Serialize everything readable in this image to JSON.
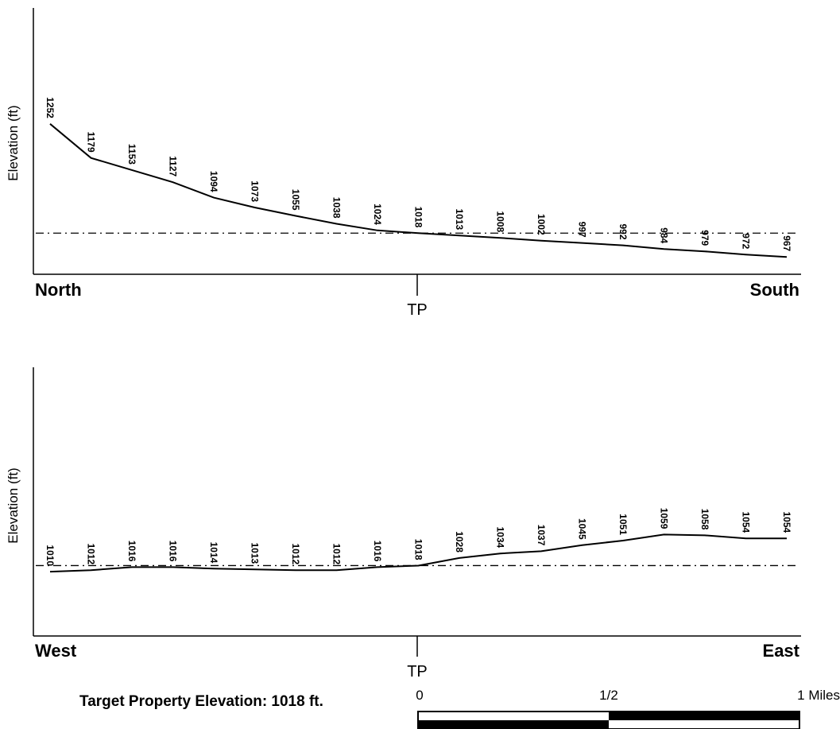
{
  "chart_data": [
    {
      "type": "line",
      "ylabel": "Elevation (ft)",
      "start_label": "North",
      "end_label": "South",
      "center_label": "TP",
      "x": [
        0,
        1,
        2,
        3,
        4,
        5,
        6,
        7,
        8,
        9,
        10,
        11,
        12,
        13,
        14,
        15,
        16,
        17,
        18
      ],
      "values": [
        1252,
        1179,
        1153,
        1127,
        1094,
        1073,
        1055,
        1038,
        1024,
        1018,
        1013,
        1008,
        1002,
        997,
        992,
        984,
        979,
        972,
        967
      ],
      "reference_elevation": 1018,
      "ylim": [
        930,
        1500
      ],
      "grid": false
    },
    {
      "type": "line",
      "ylabel": "Elevation (ft)",
      "start_label": "West",
      "end_label": "East",
      "center_label": "TP",
      "x": [
        0,
        1,
        2,
        3,
        4,
        5,
        6,
        7,
        8,
        9,
        10,
        11,
        12,
        13,
        14,
        15,
        16,
        17,
        18
      ],
      "values": [
        1010,
        1012,
        1016,
        1016,
        1014,
        1013,
        1012,
        1012,
        1016,
        1018,
        1028,
        1034,
        1037,
        1045,
        1051,
        1059,
        1058,
        1054,
        1054
      ],
      "reference_elevation": 1018,
      "ylim": [
        925,
        1280
      ],
      "grid": false
    }
  ],
  "footer": {
    "target_elevation": "Target Property Elevation: 1018 ft."
  },
  "scale_bar": {
    "tick_labels": [
      "0",
      "1/2",
      "1 Miles"
    ]
  }
}
